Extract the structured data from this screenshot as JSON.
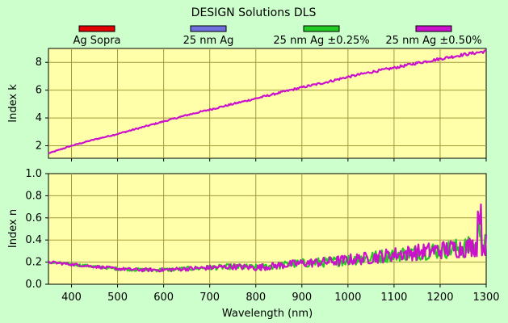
{
  "chart_data": [
    {
      "type": "line",
      "title": "DESIGN Solutions DLS",
      "xlabel": "",
      "ylabel": "Index k",
      "xlim": [
        350,
        1300
      ],
      "ylim": [
        1.1,
        9.0
      ],
      "yticks": [
        2,
        4,
        6,
        8
      ],
      "grid": true,
      "legend_position": "top",
      "series": [
        {
          "name": "Ag Sopra",
          "color": "#e00000",
          "x": [
            350,
            1300
          ],
          "y": [
            1.45,
            8.8
          ]
        },
        {
          "name": "25 nm Ag",
          "color": "#6f6fe0",
          "x": [
            350,
            1300
          ],
          "y": [
            1.45,
            8.8
          ]
        },
        {
          "name": "25 nm Ag ±0.25%",
          "color": "#22cc22",
          "x": [
            350,
            1300
          ],
          "y": [
            1.45,
            8.8
          ]
        },
        {
          "name": "25 nm Ag ±0.50%",
          "color": "#cc11cc",
          "x": [
            350,
            400,
            450,
            500,
            550,
            600,
            650,
            700,
            750,
            800,
            850,
            900,
            950,
            1000,
            1050,
            1100,
            1150,
            1200,
            1250,
            1300
          ],
          "y": [
            1.45,
            2.0,
            2.45,
            2.85,
            3.3,
            3.75,
            4.2,
            4.6,
            5.0,
            5.4,
            5.8,
            6.2,
            6.55,
            6.95,
            7.3,
            7.6,
            7.95,
            8.25,
            8.55,
            8.8
          ]
        }
      ]
    },
    {
      "type": "line",
      "title": "",
      "xlabel": "Wavelength (nm)",
      "ylabel": "Index n",
      "xlim": [
        350,
        1300
      ],
      "ylim": [
        0.0,
        1.0
      ],
      "xticks": [
        400,
        500,
        600,
        700,
        800,
        900,
        1000,
        1100,
        1200,
        1300
      ],
      "yticks": [
        0.0,
        0.2,
        0.4,
        0.6,
        0.8,
        1.0
      ],
      "grid": true,
      "series": [
        {
          "name": "25 nm Ag ±0.25%",
          "color": "#22cc22",
          "x": [
            350,
            400,
            450,
            500,
            550,
            600,
            650,
            700,
            750,
            800,
            850,
            900,
            950,
            1000,
            1050,
            1100,
            1150,
            1200,
            1250,
            1300
          ],
          "y": [
            0.2,
            0.18,
            0.16,
            0.14,
            0.13,
            0.13,
            0.14,
            0.15,
            0.16,
            0.15,
            0.17,
            0.19,
            0.2,
            0.22,
            0.24,
            0.27,
            0.29,
            0.31,
            0.33,
            0.36
          ]
        },
        {
          "name": "25 nm Ag ±0.50%",
          "color": "#cc11cc",
          "x": [
            350,
            400,
            450,
            500,
            550,
            600,
            650,
            700,
            750,
            800,
            850,
            900,
            950,
            1000,
            1050,
            1100,
            1150,
            1200,
            1250,
            1300
          ],
          "y": [
            0.2,
            0.18,
            0.16,
            0.14,
            0.13,
            0.13,
            0.14,
            0.15,
            0.16,
            0.15,
            0.17,
            0.19,
            0.2,
            0.22,
            0.24,
            0.27,
            0.29,
            0.31,
            0.33,
            0.36
          ]
        }
      ]
    }
  ],
  "legend": [
    {
      "label": "Ag Sopra",
      "color": "#e00000"
    },
    {
      "label": "25 nm Ag",
      "color": "#6f6fe0"
    },
    {
      "label": "25 nm Ag ±0.25%",
      "color": "#22cc22"
    },
    {
      "label": "25 nm Ag ±0.50%",
      "color": "#cc11cc"
    }
  ],
  "colors": {
    "background": "#ccffcc",
    "plot_background": "#ffffaa",
    "grid": "#a09a3c"
  }
}
